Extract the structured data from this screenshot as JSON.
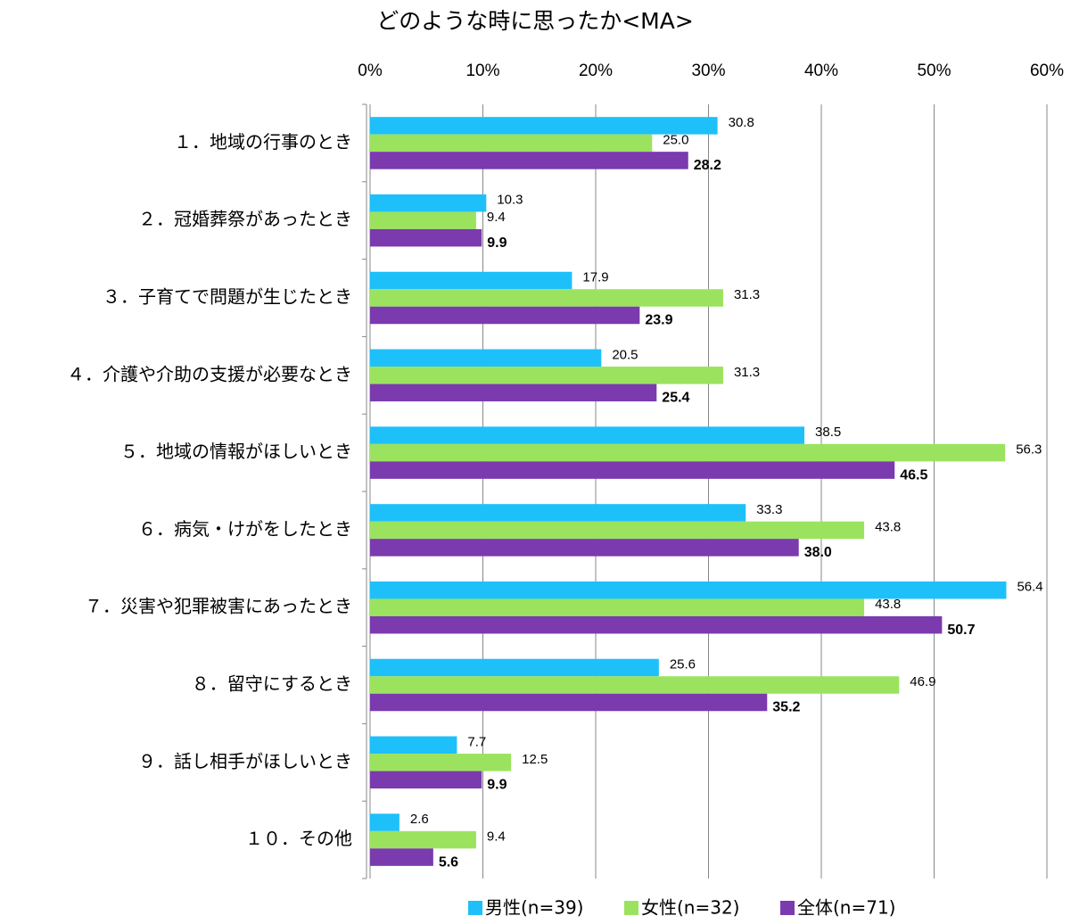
{
  "chart_data": {
    "type": "hbar",
    "title": "どのような時に思ったか<MA>",
    "categories": [
      "１．地域の行事のとき",
      "２．冠婚葬祭があったとき",
      "３．子育てで問題が生じたとき",
      "４．介護や介助の支援が必要なとき",
      "５．地域の情報がほしいとき",
      "６．病気・けがをしたとき",
      "７．災害や犯罪被害にあったとき",
      "８．留守にするとき",
      "９．話し相手がほしいとき",
      "１０．その他"
    ],
    "series": [
      {
        "name": "男性(n=39)",
        "color": "#1ec0fa",
        "values": [
          30.8,
          10.3,
          17.9,
          20.5,
          38.5,
          33.3,
          56.4,
          25.6,
          7.7,
          2.6
        ],
        "value_labels": [
          "30.8",
          "10.3",
          "17.9",
          "20.5",
          "38.5",
          "33.3",
          "56.4",
          "25.6",
          "7.7",
          "2.6"
        ]
      },
      {
        "name": "女性(n=32)",
        "color": "#9be35e",
        "values": [
          25.0,
          9.4,
          31.3,
          31.3,
          56.3,
          43.8,
          43.8,
          46.9,
          12.5,
          9.4
        ],
        "value_labels": [
          "25.0",
          "9.4",
          "31.3",
          "31.3",
          "56.3",
          "43.8",
          "43.8",
          "46.9",
          "12.5",
          "9.4"
        ]
      },
      {
        "name": "全体(n=71)",
        "color": "#7b3aae",
        "values": [
          28.2,
          9.9,
          23.9,
          25.4,
          46.5,
          38.0,
          50.7,
          35.2,
          9.9,
          5.6
        ],
        "value_labels": [
          "28.2",
          "9.9",
          "23.9",
          "25.4",
          "46.5",
          "38.0",
          "50.7",
          "35.2",
          "9.9",
          "5.6"
        ]
      }
    ],
    "xlim": [
      0,
      60
    ],
    "xticks": [
      {
        "value": 0,
        "label": "0%"
      },
      {
        "value": 10,
        "label": "10%"
      },
      {
        "value": 20,
        "label": "20%"
      },
      {
        "value": 30,
        "label": "30%"
      },
      {
        "value": 40,
        "label": "40%"
      },
      {
        "value": 50,
        "label": "50%"
      },
      {
        "value": 60,
        "label": "60%"
      }
    ],
    "grid": true
  }
}
